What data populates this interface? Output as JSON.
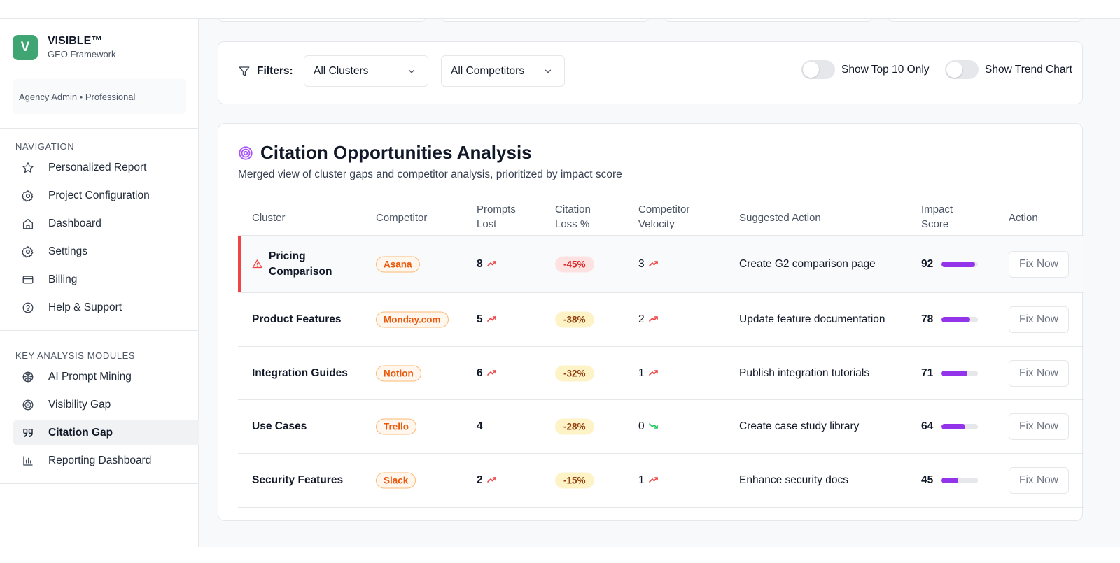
{
  "brand": {
    "logo_letter": "V",
    "title": "VISIBLE™",
    "subtitle": "GEO Framework"
  },
  "role": "Agency Admin • Professional",
  "navigation": {
    "title": "NAVIGATION",
    "items": [
      {
        "label": "Personalized Report",
        "icon": "star-icon"
      },
      {
        "label": "Project Configuration",
        "icon": "gear-icon"
      },
      {
        "label": "Dashboard",
        "icon": "home-icon"
      },
      {
        "label": "Settings",
        "icon": "gear-icon"
      },
      {
        "label": "Billing",
        "icon": "credit-card-icon"
      },
      {
        "label": "Help & Support",
        "icon": "help-circle-icon"
      }
    ]
  },
  "modules": {
    "title": "KEY ANALYSIS MODULES",
    "items": [
      {
        "label": "AI Prompt Mining",
        "icon": "brain-icon"
      },
      {
        "label": "Visibility Gap",
        "icon": "target-icon"
      },
      {
        "label": "Citation Gap",
        "icon": "quote-icon",
        "active": true
      },
      {
        "label": "Reporting Dashboard",
        "icon": "bar-chart-icon"
      }
    ]
  },
  "filters": {
    "label": "Filters:",
    "cluster_select": "All Clusters",
    "competitor_select": "All Competitors",
    "toggle_top10": "Show Top 10 Only",
    "toggle_trend": "Show Trend Chart"
  },
  "panel": {
    "title": "Citation Opportunities Analysis",
    "subtitle": "Merged view of cluster gaps and competitor analysis, prioritized by impact score",
    "columns": {
      "cluster": "Cluster",
      "competitor": "Competitor",
      "prompts_lost_1": "Prompts",
      "prompts_lost_2": "Lost",
      "citation_loss_1": "Citation",
      "citation_loss_2": "Loss %",
      "velocity_1": "Competitor",
      "velocity_2": "Velocity",
      "action_suggested": "Suggested Action",
      "impact_1": "Impact",
      "impact_2": "Score",
      "action": "Action"
    },
    "rows": [
      {
        "cluster_1": "Pricing",
        "cluster_2": "Comparison",
        "competitor": "Asana",
        "prompts_lost": "8",
        "prompts_trend": "up",
        "citation_loss": "-45%",
        "loss_level": "red",
        "velocity": "3",
        "velocity_trend": "up",
        "suggested_action": "Create G2 comparison page",
        "impact": "92",
        "impact_fraction": 0.92,
        "button": "Fix Now",
        "critical": true
      },
      {
        "cluster_1": "Product Features",
        "cluster_2": "",
        "competitor": "Monday.com",
        "prompts_lost": "5",
        "prompts_trend": "up",
        "citation_loss": "-38%",
        "loss_level": "yellow",
        "velocity": "2",
        "velocity_trend": "up",
        "suggested_action": "Update feature documentation",
        "impact": "78",
        "impact_fraction": 0.78,
        "button": "Fix Now"
      },
      {
        "cluster_1": "Integration Guides",
        "cluster_2": "",
        "competitor": "Notion",
        "prompts_lost": "6",
        "prompts_trend": "up",
        "citation_loss": "-32%",
        "loss_level": "yellow",
        "velocity": "1",
        "velocity_trend": "up",
        "suggested_action": "Publish integration tutorials",
        "impact": "71",
        "impact_fraction": 0.71,
        "button": "Fix Now"
      },
      {
        "cluster_1": "Use Cases",
        "cluster_2": "",
        "competitor": "Trello",
        "prompts_lost": "4",
        "prompts_trend": "none",
        "citation_loss": "-28%",
        "loss_level": "yellow",
        "velocity": "0",
        "velocity_trend": "down",
        "suggested_action": "Create case study library",
        "impact": "64",
        "impact_fraction": 0.64,
        "button": "Fix Now"
      },
      {
        "cluster_1": "Security Features",
        "cluster_2": "",
        "competitor": "Slack",
        "prompts_lost": "2",
        "prompts_trend": "up",
        "citation_loss": "-15%",
        "loss_level": "yellow",
        "velocity": "1",
        "velocity_trend": "up",
        "suggested_action": "Enhance security docs",
        "impact": "45",
        "impact_fraction": 0.45,
        "button": "Fix Now"
      }
    ]
  },
  "colors": {
    "brand_green": "#3fa673",
    "accent_purple": "#9333ea",
    "critical_red": "#ef4444",
    "badge_orange": "#ea580c"
  }
}
